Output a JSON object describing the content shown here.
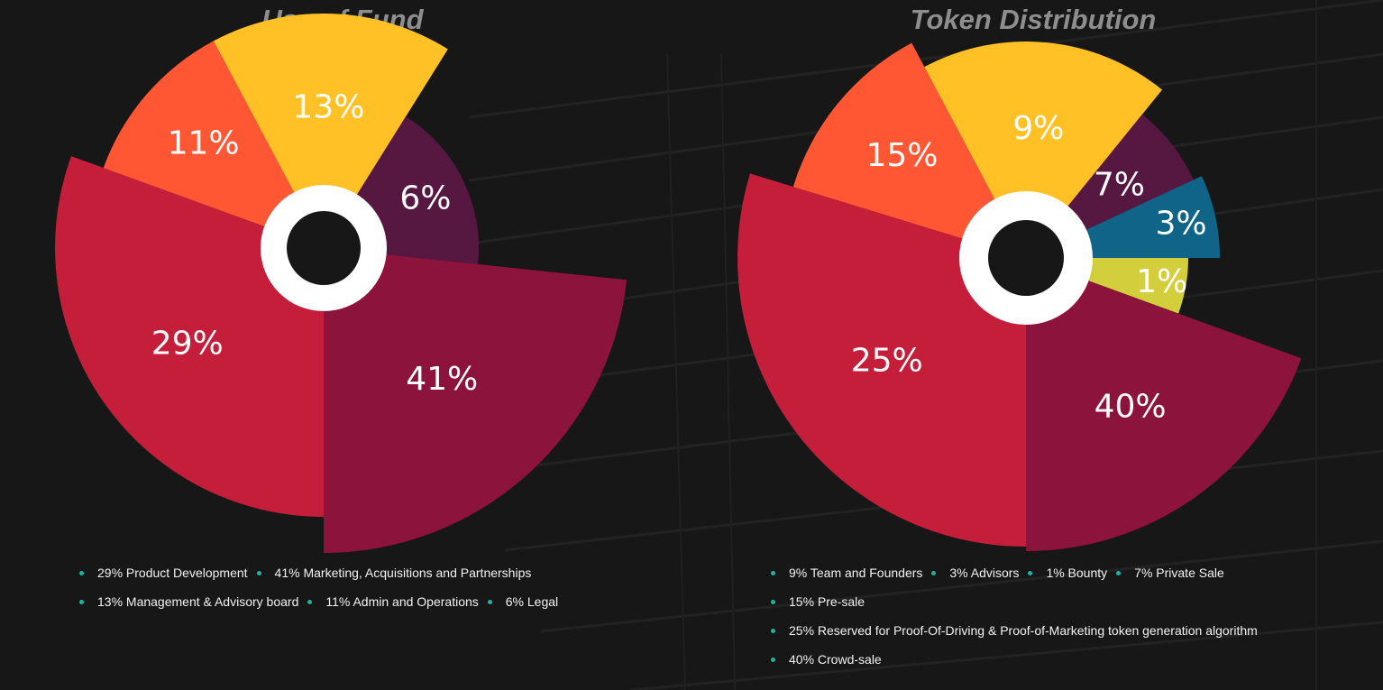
{
  "colors": {
    "background": "#171717",
    "title": "#8e8e8e",
    "legend_bullet": "#1fb3a6",
    "center_ring": "#ffffff",
    "center_hole": "#171717"
  },
  "chart_data": [
    {
      "type": "pie",
      "variant": "polar-area",
      "title": "Use of Fund",
      "slices": [
        {
          "label": "29%",
          "value": 29,
          "color": "#c41e3a"
        },
        {
          "label": "11%",
          "value": 11,
          "color": "#ff5733"
        },
        {
          "label": "13%",
          "value": 13,
          "color": "#ffc125"
        },
        {
          "label": "6%",
          "value": 6,
          "color": "#561741"
        },
        {
          "label": "41%",
          "value": 41,
          "color": "#8c133b"
        }
      ],
      "legend": [
        [
          "29% Product Development",
          "41% Marketing, Acquisitions and Partnerships"
        ],
        [
          "13% Management & Advisory board",
          "11% Admin and Operations",
          "6% Legal"
        ]
      ]
    },
    {
      "type": "pie",
      "variant": "polar-area",
      "title": "Token Distribution",
      "slices": [
        {
          "label": "25%",
          "value": 25,
          "color": "#c41e3a"
        },
        {
          "label": "15%",
          "value": 15,
          "color": "#ff5733"
        },
        {
          "label": "9%",
          "value": 9,
          "color": "#ffc125"
        },
        {
          "label": "7%",
          "value": 7,
          "color": "#561741"
        },
        {
          "label": "3%",
          "value": 3,
          "color": "#0f6487"
        },
        {
          "label": "1%",
          "value": 1,
          "color": "#d3ce3c"
        },
        {
          "label": "40%",
          "value": 40,
          "color": "#8c133b"
        }
      ],
      "legend": [
        [
          "9% Team and Founders",
          "3% Advisors",
          "1% Bounty",
          "7% Private Sale"
        ],
        [
          "15% Pre-sale"
        ],
        [
          "25% Reserved for Proof-Of-Driving & Proof-of-Marketing token generation algorithm"
        ],
        [
          "40% Crowd-sale"
        ]
      ]
    }
  ]
}
